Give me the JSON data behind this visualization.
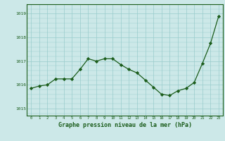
{
  "x": [
    0,
    1,
    2,
    3,
    4,
    5,
    6,
    7,
    8,
    9,
    10,
    11,
    12,
    13,
    14,
    15,
    16,
    17,
    18,
    19,
    20,
    21,
    22,
    23
  ],
  "y": [
    1015.85,
    1015.95,
    1016.0,
    1016.25,
    1016.25,
    1016.25,
    1016.65,
    1017.1,
    1017.0,
    1017.1,
    1017.1,
    1016.85,
    1016.65,
    1016.5,
    1016.2,
    1015.9,
    1015.6,
    1015.55,
    1015.75,
    1015.85,
    1016.1,
    1016.9,
    1017.75,
    1018.9
  ],
  "line_color": "#1a5c1a",
  "marker": "D",
  "marker_size": 2.2,
  "bg_color": "#cce8e8",
  "grid_color": "#99cccc",
  "ylabel_ticks": [
    1015,
    1016,
    1017,
    1018,
    1019
  ],
  "xlabel": "Graphe pression niveau de la mer (hPa)",
  "xlabel_fontsize": 6.0,
  "ylim": [
    1014.7,
    1019.4
  ],
  "xlim": [
    -0.5,
    23.5
  ]
}
